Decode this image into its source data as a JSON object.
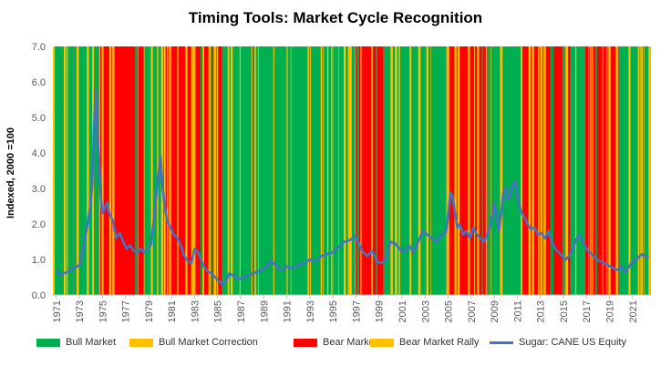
{
  "chart_data": {
    "type": "line",
    "title": "Timing Tools: Market Cycle Recognition",
    "ylabel": "Indexed, 2000 =100",
    "xlabel": "",
    "ylim": [
      0,
      7
    ],
    "xlim": [
      1970.7,
      2022.6
    ],
    "yticks": [
      "0.0",
      "1.0",
      "2.0",
      "3.0",
      "4.0",
      "5.0",
      "6.0",
      "7.0"
    ],
    "xticks": [
      "1971",
      "1973",
      "1975",
      "1977",
      "1979",
      "1981",
      "1983",
      "1985",
      "1987",
      "1989",
      "1991",
      "1993",
      "1995",
      "1997",
      "1999",
      "2001",
      "2003",
      "2005",
      "2007",
      "2009",
      "2011",
      "2013",
      "2015",
      "2017",
      "2019",
      "2021"
    ],
    "grid": false,
    "legend_position": "bottom",
    "colors": {
      "bull": "#00B050",
      "bull_correction": "#FFC000",
      "bear": "#FF0000",
      "bear_rally": "#FFC000",
      "line": "#4472C4"
    },
    "legend": [
      {
        "key": "bull",
        "label": "Bull Market",
        "kind": "area"
      },
      {
        "key": "bull_correction",
        "label": "Bull Market Correction",
        "kind": "area"
      },
      {
        "key": "bear",
        "label": "Bear Market",
        "kind": "area"
      },
      {
        "key": "bear_rally",
        "label": "Bear Market Rally",
        "kind": "area"
      },
      {
        "key": "line",
        "label": "Sugar: CANE US Equity",
        "kind": "line"
      }
    ],
    "regimes": [
      {
        "start": 1970.7,
        "end": 1972.5,
        "state": "bull"
      },
      {
        "start": 1972.5,
        "end": 1974.5,
        "state": "bull"
      },
      {
        "start": 1974.5,
        "end": 1975.6,
        "state": "bear"
      },
      {
        "start": 1975.6,
        "end": 1978.6,
        "state": "bear"
      },
      {
        "start": 1978.6,
        "end": 1980.1,
        "state": "bull"
      },
      {
        "start": 1980.1,
        "end": 1985.4,
        "state": "bear"
      },
      {
        "start": 1985.4,
        "end": 1988.5,
        "state": "bull"
      },
      {
        "start": 1988.5,
        "end": 1996.9,
        "state": "bull"
      },
      {
        "start": 1996.9,
        "end": 1999.4,
        "state": "bear"
      },
      {
        "start": 1999.4,
        "end": 2004.9,
        "state": "bull"
      },
      {
        "start": 2004.9,
        "end": 2008.4,
        "state": "bear"
      },
      {
        "start": 2008.4,
        "end": 2011.3,
        "state": "bull"
      },
      {
        "start": 2011.3,
        "end": 2015.6,
        "state": "bear"
      },
      {
        "start": 2015.6,
        "end": 2016.9,
        "state": "bull"
      },
      {
        "start": 2016.9,
        "end": 2019.8,
        "state": "bear"
      },
      {
        "start": 2019.8,
        "end": 2022.6,
        "state": "bull"
      }
    ],
    "series": [
      {
        "name": "Sugar: CANE US Equity",
        "x": [
          1971.0,
          1971.3,
          1971.6,
          1972.0,
          1972.4,
          1972.8,
          1973.0,
          1973.3,
          1973.6,
          1973.9,
          1974.1,
          1974.25,
          1974.4,
          1974.55,
          1974.7,
          1974.85,
          1975.0,
          1975.2,
          1975.4,
          1975.6,
          1975.9,
          1976.2,
          1976.5,
          1976.8,
          1977.1,
          1977.4,
          1977.7,
          1978.0,
          1978.3,
          1978.6,
          1978.9,
          1979.2,
          1979.5,
          1979.75,
          1979.9,
          1980.05,
          1980.2,
          1980.4,
          1980.6,
          1980.9,
          1981.2,
          1981.5,
          1981.8,
          1982.1,
          1982.4,
          1982.7,
          1983.0,
          1983.3,
          1983.6,
          1983.9,
          1984.2,
          1984.5,
          1984.8,
          1985.1,
          1985.4,
          1985.7,
          1986.0,
          1986.4,
          1986.8,
          1987.2,
          1987.6,
          1988.0,
          1988.4,
          1988.8,
          1989.2,
          1989.6,
          1990.0,
          1990.5,
          1991.0,
          1991.5,
          1992.0,
          1992.5,
          1993.0,
          1993.5,
          1994.0,
          1994.5,
          1995.0,
          1995.5,
          1996.0,
          1996.5,
          1996.9,
          1997.2,
          1997.6,
          1998.0,
          1998.4,
          1998.8,
          1999.2,
          1999.6,
          2000.0,
          2000.4,
          2000.8,
          2001.2,
          2001.6,
          2002.0,
          2002.4,
          2002.8,
          2003.2,
          2003.6,
          2004.0,
          2004.4,
          2004.8,
          2005.0,
          2005.2,
          2005.4,
          2005.6,
          2005.8,
          2006.0,
          2006.3,
          2006.6,
          2006.9,
          2007.2,
          2007.5,
          2007.8,
          2008.1,
          2008.4,
          2008.7,
          2009.0,
          2009.2,
          2009.4,
          2009.6,
          2009.8,
          2010.0,
          2010.2,
          2010.4,
          2010.6,
          2010.8,
          2011.0,
          2011.2,
          2011.4,
          2011.6,
          2011.9,
          2012.2,
          2012.5,
          2012.8,
          2013.1,
          2013.4,
          2013.7,
          2014.0,
          2014.3,
          2014.6,
          2014.9,
          2015.2,
          2015.5,
          2015.8,
          2016.1,
          2016.4,
          2016.7,
          2017.0,
          2017.3,
          2017.6,
          2017.9,
          2018.2,
          2018.5,
          2018.8,
          2019.1,
          2019.4,
          2019.7,
          2020.0,
          2020.3,
          2020.6,
          2020.9,
          2021.2,
          2021.5,
          2021.8,
          2022.1,
          2022.4
        ],
        "y": [
          0.7,
          0.55,
          0.6,
          0.65,
          0.75,
          0.8,
          0.85,
          1.3,
          1.8,
          2.4,
          3.0,
          4.5,
          5.8,
          4.6,
          3.8,
          2.8,
          2.3,
          2.45,
          2.6,
          2.3,
          2.1,
          1.6,
          1.75,
          1.5,
          1.3,
          1.4,
          1.25,
          1.2,
          1.3,
          1.2,
          1.3,
          1.4,
          2.2,
          3.1,
          3.5,
          3.9,
          3.1,
          2.5,
          2.1,
          1.9,
          1.7,
          1.6,
          1.4,
          1.1,
          0.95,
          0.9,
          1.3,
          1.2,
          0.95,
          0.75,
          0.65,
          0.6,
          0.5,
          0.4,
          0.3,
          0.4,
          0.6,
          0.55,
          0.45,
          0.5,
          0.55,
          0.6,
          0.65,
          0.7,
          0.8,
          0.95,
          0.85,
          0.7,
          0.8,
          0.75,
          0.85,
          0.9,
          1.0,
          0.95,
          1.1,
          1.15,
          1.2,
          1.35,
          1.5,
          1.55,
          1.65,
          1.5,
          1.2,
          1.1,
          1.25,
          0.95,
          0.9,
          1.0,
          1.5,
          1.45,
          1.3,
          1.2,
          1.4,
          1.2,
          1.5,
          1.8,
          1.7,
          1.6,
          1.5,
          1.7,
          1.75,
          2.2,
          2.9,
          2.75,
          2.3,
          1.9,
          2.0,
          1.7,
          1.8,
          1.6,
          1.9,
          1.7,
          1.6,
          1.5,
          1.7,
          2.0,
          2.6,
          2.2,
          1.8,
          2.3,
          2.9,
          3.0,
          2.7,
          2.8,
          3.1,
          3.2,
          2.8,
          2.5,
          2.3,
          2.2,
          2.0,
          1.85,
          1.9,
          1.7,
          1.75,
          1.6,
          1.8,
          1.5,
          1.3,
          1.2,
          1.1,
          1.0,
          1.1,
          1.3,
          1.55,
          1.7,
          1.5,
          1.3,
          1.2,
          1.1,
          1.0,
          0.95,
          0.9,
          0.85,
          0.8,
          0.75,
          0.7,
          0.8,
          0.65,
          0.75,
          0.9,
          1.0,
          1.05,
          1.15,
          1.1,
          1.05
        ]
      }
    ]
  }
}
